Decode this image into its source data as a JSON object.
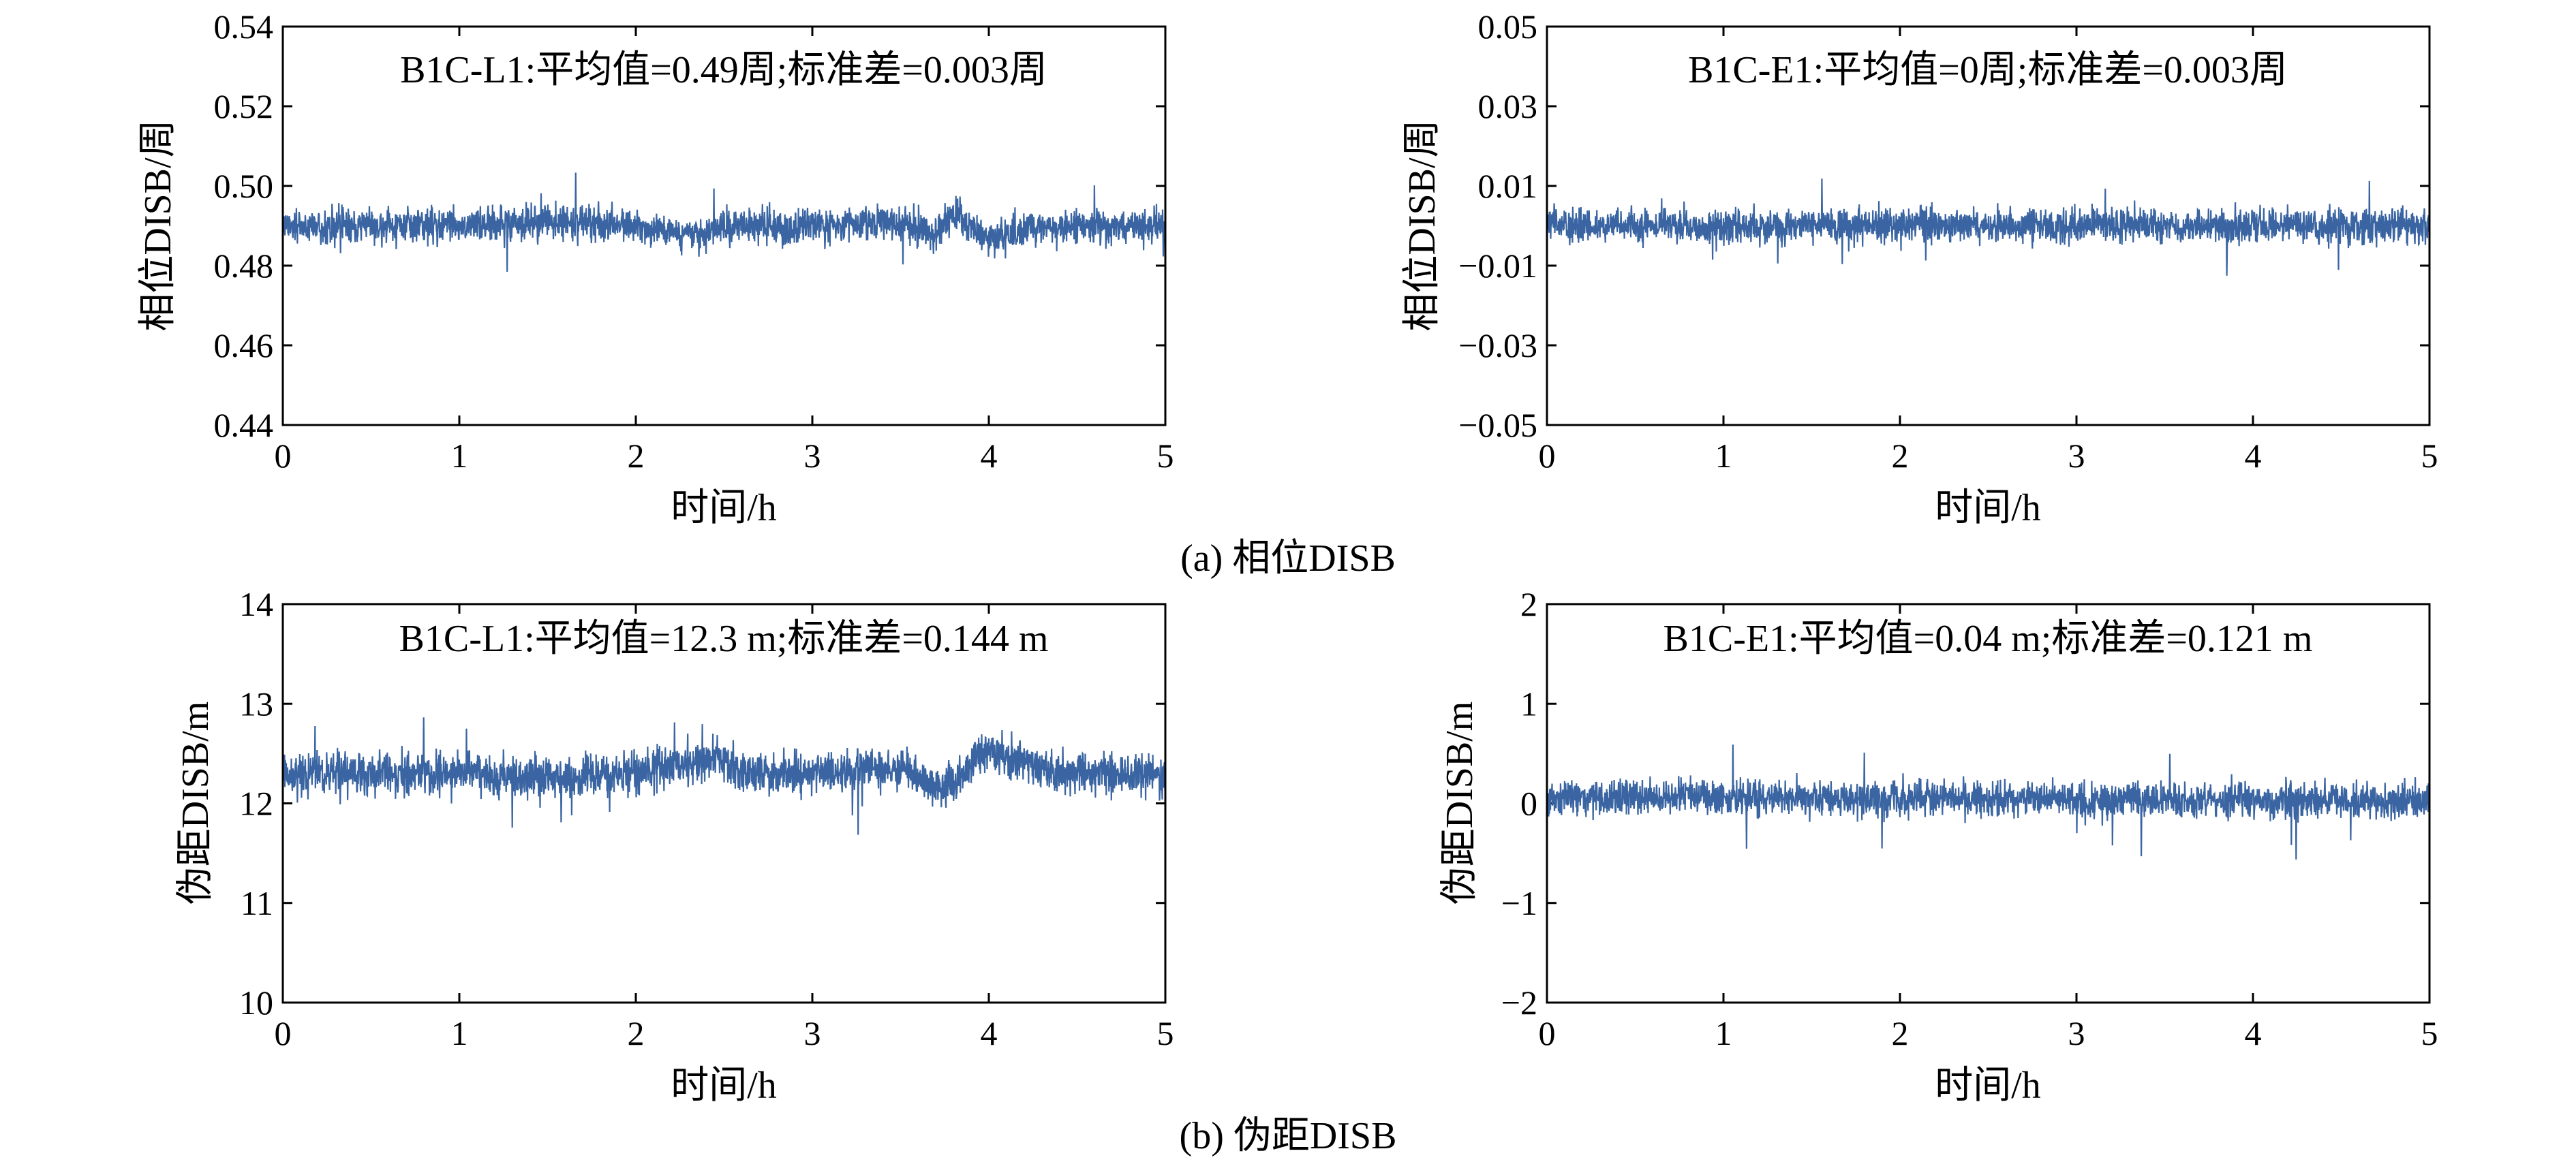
{
  "figure": {
    "caption_a": "(a) 相位DISB",
    "caption_b": "(b) 伪距DISB"
  },
  "series_color": "#3a65a2",
  "chart_data": [
    {
      "type": "line",
      "panel": "top-left",
      "annotation": "B1C-L1:平均值=0.49周;标准差=0.003周",
      "xlabel": "时间/h",
      "ylabel": "相位DISB/周",
      "xlim": [
        0,
        5
      ],
      "ylim": [
        0.44,
        0.54
      ],
      "xticks": [
        "0",
        "1",
        "2",
        "3",
        "4",
        "5"
      ],
      "yticks": [
        "0.44",
        "0.46",
        "0.48",
        "0.50",
        "0.52",
        "0.54"
      ],
      "grid": false,
      "series": [
        {
          "mean": 0.49,
          "std": 0.003,
          "x": [
            0,
            0.5,
            1.0,
            1.5,
            2.0,
            2.3,
            2.5,
            3.0,
            3.5,
            3.7,
            3.8,
            4.0,
            4.2,
            4.5,
            5.0
          ],
          "y": [
            0.49,
            0.49,
            0.49,
            0.491,
            0.49,
            0.487,
            0.49,
            0.49,
            0.491,
            0.488,
            0.493,
            0.486,
            0.489,
            0.49,
            0.49
          ]
        }
      ]
    },
    {
      "type": "line",
      "panel": "top-right",
      "annotation": "B1C-E1:平均值=0周;标准差=0.003周",
      "xlabel": "时间/h",
      "ylabel": "相位DISB/周",
      "xlim": [
        0,
        5
      ],
      "ylim": [
        -0.05,
        0.05
      ],
      "xticks": [
        "0",
        "1",
        "2",
        "3",
        "4",
        "5"
      ],
      "yticks": [
        "−0.05",
        "−0.03",
        "−0.01",
        "0.01",
        "0.03",
        "0.05"
      ],
      "grid": false,
      "series": [
        {
          "mean": 0.0,
          "std": 0.003,
          "x": [
            0,
            1,
            2,
            3,
            4,
            4.9,
            5
          ],
          "y": [
            0.0,
            0.0,
            0.0,
            0.0,
            0.0,
            0.0,
            0.0
          ]
        }
      ]
    },
    {
      "type": "line",
      "panel": "bottom-left",
      "annotation": "B1C-L1:平均值=12.3 m;标准差=0.144 m",
      "xlabel": "时间/h",
      "ylabel": "伪距DISB/m",
      "xlim": [
        0,
        5
      ],
      "ylim": [
        10,
        14
      ],
      "xticks": [
        "0",
        "1",
        "2",
        "3",
        "4",
        "5"
      ],
      "yticks": [
        "10",
        "11",
        "12",
        "13",
        "14"
      ],
      "grid": false,
      "series": [
        {
          "mean": 12.3,
          "std": 0.144,
          "x": [
            0,
            0.5,
            1.0,
            1.5,
            2.0,
            2.3,
            2.5,
            2.6,
            3.0,
            3.5,
            3.7,
            3.8,
            4.0,
            4.2,
            4.5,
            5.0
          ],
          "y": [
            12.3,
            12.3,
            12.3,
            12.25,
            12.3,
            12.4,
            12.45,
            12.3,
            12.3,
            12.35,
            12.15,
            12.2,
            12.55,
            12.4,
            12.3,
            12.25
          ]
        }
      ]
    },
    {
      "type": "line",
      "panel": "bottom-right",
      "annotation": "B1C-E1:平均值=0.04 m;标准差=0.121 m",
      "xlabel": "时间/h",
      "ylabel": "伪距DISB/m",
      "xlim": [
        0,
        5
      ],
      "ylim": [
        -2,
        2
      ],
      "xticks": [
        "0",
        "1",
        "2",
        "3",
        "4",
        "5"
      ],
      "yticks": [
        "−2",
        "−1",
        "0",
        "1",
        "2"
      ],
      "grid": false,
      "series": [
        {
          "mean": 0.04,
          "std": 0.121,
          "x": [
            0,
            1,
            2,
            3,
            4,
            5
          ],
          "y": [
            0.05,
            0.06,
            0.05,
            0.03,
            0.03,
            0.02
          ]
        }
      ]
    }
  ]
}
